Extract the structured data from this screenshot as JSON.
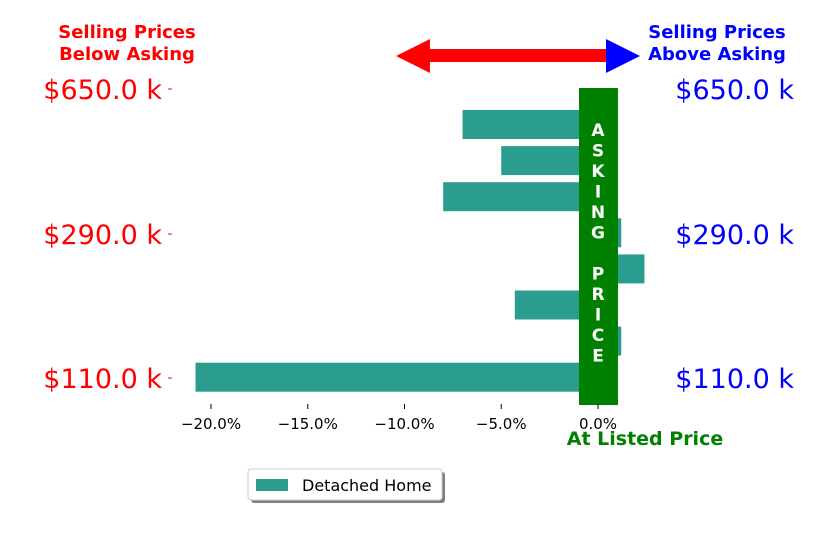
{
  "chart_data": {
    "type": "bar",
    "orientation": "horizontal",
    "series": [
      {
        "name": "Detached Home",
        "color": "#2a9d8f",
        "values": [
          -20.8,
          1.2,
          -4.3,
          2.4,
          1.2,
          -8.0,
          -5.0,
          -7.0
        ]
      }
    ],
    "xlim": [
      -22,
      4
    ],
    "x_ticks": [
      -20,
      -15,
      -10,
      -5,
      0
    ],
    "x_tick_labels": [
      "−20.0%",
      "−15.0%",
      "−10.0%",
      "−5.0%",
      "0.0%"
    ],
    "y_tick_labels_left": [
      "$110.0 k",
      "$290.0 k",
      "$650.0 k"
    ],
    "y_tick_labels_right": [
      "$110.0 k",
      "$290.0 k",
      "$650.0 k"
    ],
    "legend_position": "bottom-center",
    "grid": false
  },
  "annotations": {
    "below_asking_line1": "Selling Prices",
    "below_asking_line2": "Below Asking",
    "above_asking_line1": "Selling Prices",
    "above_asking_line2": "Above Asking",
    "at_listed_price": "At Listed Price",
    "asking_price_letters": [
      "A",
      "S",
      "K",
      "I",
      "N",
      "G",
      "",
      "P",
      "R",
      "I",
      "C",
      "E"
    ]
  },
  "colors": {
    "below": "#ff0000",
    "above": "#0000ff",
    "asking_band": "#008000",
    "bar": "#2a9d8f"
  }
}
